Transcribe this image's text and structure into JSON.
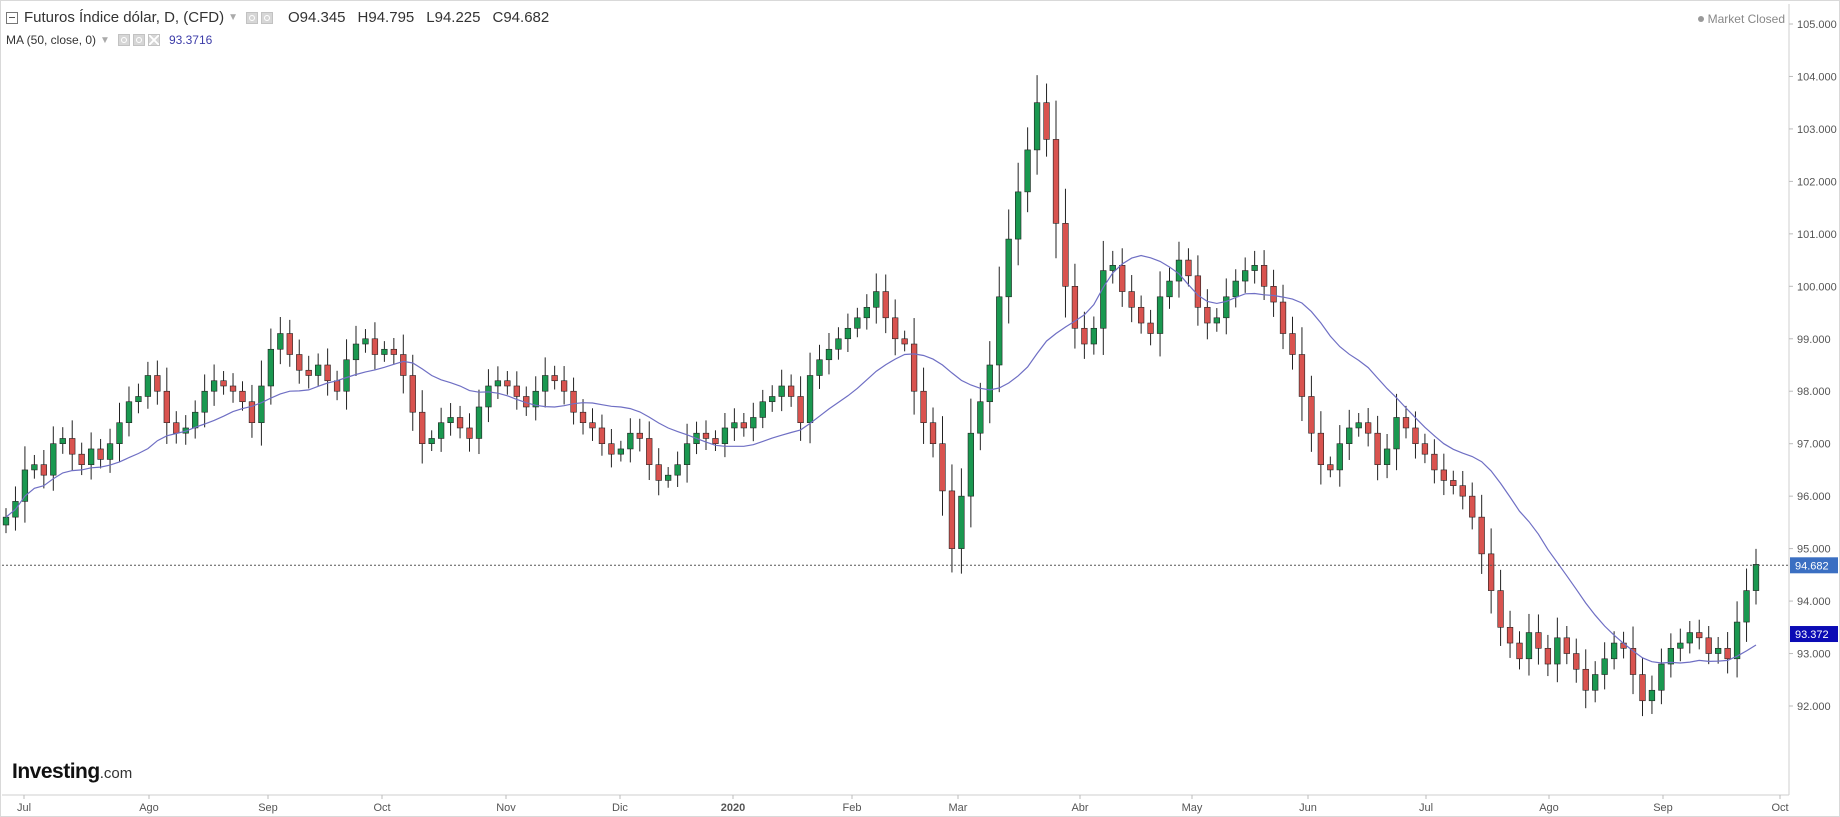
{
  "header": {
    "title": "Futuros Índice dólar, D, (CFD)",
    "o_label": "O",
    "o_value": "94.345",
    "h_label": "H",
    "h_value": "94.795",
    "l_label": "L",
    "l_value": "94.225",
    "c_label": "C",
    "c_value": "94.682"
  },
  "indicator": {
    "label": "MA (50, close, 0)",
    "value": "93.3716"
  },
  "status": {
    "market": "Market Closed"
  },
  "brand": {
    "name": "Investing",
    "suffix": ".com"
  },
  "price_tag": {
    "value": "94.682",
    "color": "#3b6fc2"
  },
  "ma_tag": {
    "value": "93.372",
    "color": "#0b0bb5"
  },
  "colors": {
    "up": "#1a9850",
    "down": "#d9534f",
    "ma_line": "#6f6fc4"
  },
  "chart_data": {
    "type": "candlestick",
    "title": "Futuros Índice dólar, D, (CFD)",
    "ylim": [
      91.5,
      105.3
    ],
    "y_ticks": [
      "92.000",
      "93.000",
      "94.000",
      "95.000",
      "96.000",
      "97.000",
      "98.000",
      "99.000",
      "100.000",
      "101.000",
      "102.000",
      "103.000",
      "104.000",
      "105.000"
    ],
    "x_ticks": [
      "Jul",
      "Ago",
      "Sep",
      "Oct",
      "Nov",
      "Dic",
      "2020",
      "Feb",
      "Mar",
      "Abr",
      "May",
      "Jun",
      "Jul",
      "Ago",
      "Sep",
      "Oct"
    ],
    "last_close": 94.682,
    "close_series": [
      95.6,
      95.9,
      96.5,
      96.6,
      96.4,
      97.0,
      97.1,
      96.8,
      96.6,
      96.9,
      96.7,
      97.0,
      97.4,
      97.8,
      97.9,
      98.3,
      98.0,
      97.4,
      97.2,
      97.3,
      97.6,
      98.0,
      98.2,
      98.1,
      98.0,
      97.8,
      97.4,
      98.1,
      98.8,
      99.1,
      98.7,
      98.4,
      98.3,
      98.5,
      98.2,
      98.0,
      98.6,
      98.9,
      99.0,
      98.7,
      98.8,
      98.7,
      98.3,
      97.6,
      97.0,
      97.1,
      97.4,
      97.5,
      97.3,
      97.1,
      97.7,
      98.1,
      98.2,
      98.1,
      97.9,
      97.7,
      98.0,
      98.3,
      98.2,
      98.0,
      97.6,
      97.4,
      97.3,
      97.0,
      96.8,
      96.9,
      97.2,
      97.1,
      96.6,
      96.3,
      96.4,
      96.6,
      97.0,
      97.2,
      97.1,
      97.0,
      97.3,
      97.4,
      97.3,
      97.5,
      97.8,
      97.9,
      98.1,
      97.9,
      97.4,
      98.3,
      98.6,
      98.8,
      99.0,
      99.2,
      99.4,
      99.6,
      99.9,
      99.4,
      99.0,
      98.9,
      98.0,
      97.4,
      97.0,
      96.1,
      95.0,
      96.0,
      97.2,
      97.8,
      98.5,
      99.8,
      100.9,
      101.8,
      102.6,
      103.5,
      102.8,
      101.2,
      100.0,
      99.2,
      98.9,
      99.2,
      100.3,
      100.4,
      99.9,
      99.6,
      99.3,
      99.1,
      99.8,
      100.1,
      100.5,
      100.2,
      99.6,
      99.3,
      99.4,
      99.8,
      100.1,
      100.3,
      100.4,
      100.0,
      99.7,
      99.1,
      98.7,
      97.9,
      97.2,
      96.6,
      96.5,
      97.0,
      97.3,
      97.4,
      97.2,
      96.6,
      96.9,
      97.5,
      97.3,
      97.0,
      96.8,
      96.5,
      96.3,
      96.2,
      96.0,
      95.6,
      94.9,
      94.2,
      93.5,
      93.2,
      92.9,
      93.4,
      93.1,
      92.8,
      93.3,
      93.0,
      92.7,
      92.3,
      92.6,
      92.9,
      93.2,
      93.1,
      92.6,
      92.1,
      92.3,
      92.8,
      93.1,
      93.2,
      93.4,
      93.3,
      93.0,
      93.1,
      92.9,
      93.6,
      94.2,
      94.7
    ]
  }
}
